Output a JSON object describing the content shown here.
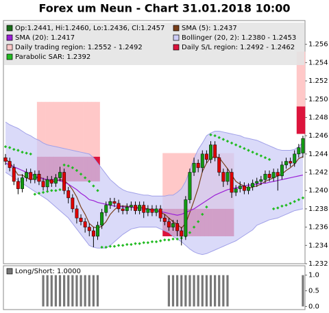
{
  "chart_data": {
    "type": "candlestick",
    "title": "Forex um Neun - Chart 31.01.2018 10:00",
    "ylim": [
      1.232,
      1.2586
    ],
    "yticks": [
      1.232,
      1.234,
      1.236,
      1.238,
      {
        "value": 1.24,
        "label": "1.240"
      },
      1.242,
      1.244,
      1.246,
      1.248,
      {
        "value": 1.25,
        "label": "1.250"
      },
      1.252,
      1.254,
      1.256
    ],
    "candles": {
      "name": "Op:1.2441, Hi:1.2460, Lo:1.2436, Cl:1.2457",
      "color": "#1a6e1a",
      "up_color": "#129a12",
      "down_color": "#dd0000",
      "open": [
        1.2436,
        1.2432,
        1.2425,
        1.241,
        1.2402,
        1.2414,
        1.242,
        1.2412,
        1.2418,
        1.241,
        1.2404,
        1.2412,
        1.2408,
        1.2414,
        1.242,
        1.24,
        1.2392,
        1.238,
        1.237,
        1.2366,
        1.236,
        1.2356,
        1.235,
        1.2362,
        1.2376,
        1.2384,
        1.2388,
        1.2386,
        1.238,
        1.2378,
        1.2382,
        1.2384,
        1.2378,
        1.2384,
        1.2376,
        1.238,
        1.2376,
        1.238,
        1.237,
        1.2366,
        1.236,
        1.2364,
        1.2356,
        1.235,
        1.239,
        1.242,
        1.243,
        1.2425,
        1.244,
        1.2434,
        1.245,
        1.2436,
        1.242,
        1.241,
        1.242,
        1.2398,
        1.2402,
        1.2405,
        1.24,
        1.2404,
        1.2408,
        1.241,
        1.2412,
        1.2418,
        1.2414,
        1.242,
        1.2416,
        1.2428,
        1.2432,
        1.243,
        1.244,
        1.2441
      ],
      "high": [
        1.244,
        1.2436,
        1.2429,
        1.2414,
        1.2418,
        1.2424,
        1.2424,
        1.2422,
        1.2422,
        1.2414,
        1.2416,
        1.2416,
        1.2418,
        1.2426,
        1.2424,
        1.2404,
        1.2396,
        1.2384,
        1.2374,
        1.237,
        1.2364,
        1.236,
        1.2366,
        1.238,
        1.2388,
        1.2392,
        1.2392,
        1.239,
        1.2384,
        1.2386,
        1.2388,
        1.2388,
        1.2388,
        1.2388,
        1.2384,
        1.2384,
        1.2384,
        1.2384,
        1.2374,
        1.237,
        1.2368,
        1.2368,
        1.236,
        1.2394,
        1.2424,
        1.2436,
        1.2434,
        1.2444,
        1.2444,
        1.2454,
        1.2454,
        1.244,
        1.2424,
        1.2424,
        1.2424,
        1.2406,
        1.241,
        1.2409,
        1.2408,
        1.2412,
        1.2414,
        1.2416,
        1.2422,
        1.2422,
        1.2424,
        1.2424,
        1.2432,
        1.2436,
        1.2436,
        1.2444,
        1.2451,
        1.246
      ],
      "low": [
        1.2428,
        1.2421,
        1.2406,
        1.2396,
        1.2398,
        1.241,
        1.2408,
        1.2408,
        1.2406,
        1.24,
        1.24,
        1.2404,
        1.2404,
        1.241,
        1.2396,
        1.2386,
        1.2376,
        1.2364,
        1.2362,
        1.2354,
        1.235,
        1.2338,
        1.2346,
        1.2358,
        1.2372,
        1.238,
        1.2382,
        1.2376,
        1.2374,
        1.2374,
        1.2378,
        1.2374,
        1.2374,
        1.237,
        1.2372,
        1.2372,
        1.2372,
        1.2366,
        1.2362,
        1.2356,
        1.2356,
        1.235,
        1.234,
        1.2346,
        1.2386,
        1.2416,
        1.242,
        1.242,
        1.243,
        1.243,
        1.2432,
        1.2416,
        1.2404,
        1.2406,
        1.2392,
        1.2394,
        1.2398,
        1.2396,
        1.2396,
        1.24,
        1.2404,
        1.2406,
        1.2408,
        1.241,
        1.241,
        1.24,
        1.2412,
        1.2424,
        1.2426,
        1.2426,
        1.2436,
        1.2436
      ],
      "close": [
        1.2432,
        1.2425,
        1.241,
        1.2402,
        1.2414,
        1.242,
        1.2412,
        1.2418,
        1.241,
        1.2404,
        1.2412,
        1.2408,
        1.2414,
        1.242,
        1.24,
        1.2392,
        1.238,
        1.237,
        1.2366,
        1.236,
        1.2356,
        1.235,
        1.2362,
        1.2376,
        1.2384,
        1.2388,
        1.2386,
        1.238,
        1.2378,
        1.2382,
        1.2384,
        1.2378,
        1.2384,
        1.2376,
        1.238,
        1.2376,
        1.238,
        1.237,
        1.2366,
        1.236,
        1.2364,
        1.2356,
        1.235,
        1.239,
        1.242,
        1.243,
        1.2425,
        1.244,
        1.2434,
        1.245,
        1.2436,
        1.242,
        1.241,
        1.242,
        1.2398,
        1.2402,
        1.2405,
        1.24,
        1.2404,
        1.2408,
        1.241,
        1.2412,
        1.2418,
        1.2414,
        1.242,
        1.2416,
        1.2428,
        1.2432,
        1.243,
        1.244,
        1.2447,
        1.2457
      ]
    },
    "series": [
      {
        "name": "SMA (5): 1.2437",
        "color": "#7a3f1a",
        "values": [
          1.2434,
          1.2431,
          1.2424,
          1.2417,
          1.2417,
          1.2414,
          1.2412,
          1.2413,
          1.2415,
          1.2413,
          1.2411,
          1.241,
          1.241,
          1.2412,
          1.2411,
          1.2407,
          1.2401,
          1.2393,
          1.2382,
          1.2374,
          1.2364,
          1.236,
          1.2359,
          1.2361,
          1.2366,
          1.2374,
          1.2379,
          1.2383,
          1.2383,
          1.2383,
          1.2382,
          1.2381,
          1.2382,
          1.2381,
          1.238,
          1.2379,
          1.2379,
          1.2376,
          1.2374,
          1.237,
          1.2366,
          1.2363,
          1.2359,
          1.2364,
          1.2376,
          1.2389,
          1.2403,
          1.2421,
          1.243,
          1.2436,
          1.2437,
          1.2436,
          1.243,
          1.2424,
          1.2417,
          1.241,
          1.2407,
          1.2405,
          1.2402,
          1.2404,
          1.2405,
          1.2407,
          1.241,
          1.2412,
          1.2414,
          1.2416,
          1.2418,
          1.2422,
          1.2425,
          1.2429,
          1.2435,
          1.2437
        ]
      },
      {
        "name": "SMA (20): 1.2417",
        "color": "#9b1fd6",
        "values": [
          1.243,
          1.2428,
          1.2426,
          1.2424,
          1.2422,
          1.242,
          1.2418,
          1.2416,
          1.2414,
          1.2413,
          1.2412,
          1.2412,
          1.2412,
          1.2411,
          1.2409,
          1.2407,
          1.2404,
          1.2401,
          1.2397,
          1.2394,
          1.239,
          1.2389,
          1.2387,
          1.2386,
          1.2385,
          1.2384,
          1.2383,
          1.2383,
          1.2382,
          1.2382,
          1.2382,
          1.2381,
          1.238,
          1.238,
          1.2379,
          1.2379,
          1.2378,
          1.2377,
          1.2376,
          1.2375,
          1.2374,
          1.2373,
          1.2374,
          1.2376,
          1.2378,
          1.238,
          1.2383,
          1.2386,
          1.2389,
          1.2392,
          1.2395,
          1.2397,
          1.2399,
          1.2401,
          1.2402,
          1.2403,
          1.2404,
          1.2405,
          1.2406,
          1.2406,
          1.2407,
          1.2408,
          1.2408,
          1.2409,
          1.241,
          1.2411,
          1.2412,
          1.2413,
          1.2414,
          1.2415,
          1.2416,
          1.2417
        ]
      }
    ],
    "bollinger": {
      "name": "Bollinger (20, 2): 1.2380 - 1.2453",
      "color": "#cdcdf7",
      "line_color": "#a0a0e8",
      "upper": [
        1.2475,
        1.2472,
        1.247,
        1.2468,
        1.2465,
        1.2462,
        1.246,
        1.2457,
        1.2455,
        1.2452,
        1.245,
        1.2449,
        1.2448,
        1.2447,
        1.2446,
        1.2445,
        1.2444,
        1.2443,
        1.2442,
        1.2441,
        1.244,
        1.2436,
        1.243,
        1.2424,
        1.2418,
        1.2412,
        1.2408,
        1.2404,
        1.2401,
        1.2399,
        1.2398,
        1.2397,
        1.2396,
        1.2395,
        1.2395,
        1.2394,
        1.2394,
        1.2394,
        1.2394,
        1.2395,
        1.2395,
        1.2398,
        1.2402,
        1.241,
        1.2422,
        1.2435,
        1.2445,
        1.2452,
        1.246,
        1.2463,
        1.2465,
        1.2465,
        1.2464,
        1.2463,
        1.2462,
        1.2461,
        1.246,
        1.2458,
        1.2457,
        1.2456,
        1.2455,
        1.2453,
        1.2451,
        1.2449,
        1.2447,
        1.2445,
        1.2444,
        1.2444,
        1.2444,
        1.2445,
        1.2448,
        1.2453
      ],
      "lower": [
        1.242,
        1.2417,
        1.2414,
        1.2411,
        1.2408,
        1.2405,
        1.2402,
        1.2399,
        1.2396,
        1.2393,
        1.239,
        1.2386,
        1.2382,
        1.2378,
        1.2374,
        1.237,
        1.2364,
        1.2358,
        1.2352,
        1.2346,
        1.234,
        1.2338,
        1.2337,
        1.2337,
        1.2337,
        1.234,
        1.2344,
        1.2348,
        1.2352,
        1.2355,
        1.2358,
        1.2359,
        1.236,
        1.236,
        1.236,
        1.236,
        1.236,
        1.2358,
        1.2356,
        1.2354,
        1.235,
        1.2347,
        1.2344,
        1.234,
        1.2336,
        1.2333,
        1.2331,
        1.233,
        1.2331,
        1.2333,
        1.2335,
        1.2337,
        1.2339,
        1.2341,
        1.2343,
        1.2345,
        1.2348,
        1.2351,
        1.2354,
        1.2357,
        1.2362,
        1.2364,
        1.2366,
        1.2368,
        1.2369,
        1.237,
        1.2372,
        1.2374,
        1.2376,
        1.2378,
        1.2379,
        1.238
      ]
    },
    "regions": [
      {
        "name": "Daily trading region: 1.2552 - 1.2492",
        "color": "#ffc8c8",
        "high": [
          null,
          null,
          null,
          null,
          null,
          null,
          null,
          null,
          1.2497,
          1.2497,
          1.2497,
          1.2497,
          1.2497,
          1.2497,
          1.2497,
          1.2497,
          1.2497,
          1.2497,
          1.2497,
          1.2497,
          1.2497,
          1.2497,
          1.2497,
          null,
          null,
          null,
          null,
          null,
          null,
          null,
          null,
          null,
          null,
          null,
          null,
          null,
          null,
          null,
          1.2441,
          1.2441,
          1.2441,
          1.2441,
          1.2441,
          1.2441,
          1.2441,
          1.2441,
          1.2441,
          1.2441,
          1.2441,
          1.2441,
          1.2441,
          1.2441,
          1.2441,
          1.2441,
          1.2441,
          null,
          null,
          null,
          null,
          null,
          null,
          null,
          null,
          null,
          null,
          null,
          null,
          null,
          null,
          null,
          1.2552,
          1.2552
        ],
        "low": [
          null,
          null,
          null,
          null,
          null,
          null,
          null,
          null,
          1.2437,
          1.2437,
          1.2437,
          1.2437,
          1.2437,
          1.2437,
          1.2437,
          1.2437,
          1.2437,
          1.2437,
          1.2437,
          1.2437,
          1.2437,
          1.2437,
          1.2437,
          null,
          null,
          null,
          null,
          null,
          null,
          null,
          null,
          null,
          null,
          null,
          null,
          null,
          null,
          null,
          1.238,
          1.238,
          1.238,
          1.238,
          1.238,
          1.238,
          1.238,
          1.238,
          1.238,
          1.238,
          1.238,
          1.238,
          1.238,
          1.238,
          1.238,
          1.238,
          1.238,
          null,
          null,
          null,
          null,
          null,
          null,
          null,
          null,
          null,
          null,
          null,
          null,
          null,
          null,
          null,
          1.2492,
          1.2492
        ]
      },
      {
        "name": "Daily S/L region: 1.2492 - 1.2462",
        "color": "#dc143c",
        "high": [
          null,
          null,
          null,
          null,
          null,
          null,
          null,
          null,
          1.2437,
          1.2437,
          1.2437,
          1.2437,
          1.2437,
          1.2437,
          1.2437,
          1.2437,
          1.2437,
          1.2437,
          1.2437,
          1.2437,
          1.2437,
          1.2437,
          1.2437,
          null,
          null,
          null,
          null,
          null,
          null,
          null,
          null,
          null,
          null,
          null,
          null,
          null,
          null,
          null,
          1.238,
          1.238,
          1.238,
          1.238,
          1.238,
          1.238,
          1.238,
          1.238,
          1.238,
          1.238,
          1.238,
          1.238,
          1.238,
          1.238,
          1.238,
          1.238,
          1.238,
          null,
          null,
          null,
          null,
          null,
          null,
          null,
          null,
          null,
          null,
          null,
          null,
          null,
          null,
          null,
          1.2492,
          1.2492
        ],
        "low": [
          null,
          null,
          null,
          null,
          null,
          null,
          null,
          null,
          1.241,
          1.241,
          1.241,
          1.241,
          1.241,
          1.241,
          1.241,
          1.241,
          1.241,
          1.241,
          1.241,
          1.241,
          1.241,
          1.241,
          1.241,
          null,
          null,
          null,
          null,
          null,
          null,
          null,
          null,
          null,
          null,
          null,
          null,
          null,
          null,
          null,
          1.235,
          1.235,
          1.235,
          1.235,
          1.235,
          1.235,
          1.235,
          1.235,
          1.235,
          1.235,
          1.235,
          1.235,
          1.235,
          1.235,
          1.235,
          1.235,
          1.235,
          null,
          null,
          null,
          null,
          null,
          null,
          null,
          null,
          null,
          null,
          null,
          null,
          null,
          null,
          null,
          1.2462,
          1.2462
        ]
      }
    ],
    "sar": {
      "name": "Parabolic SAR: 1.2392",
      "color": "#22bb22",
      "values": [
        1.2448,
        1.2447,
        1.2445,
        1.2444,
        1.2442,
        1.2441,
        1.244,
        1.2396,
        1.2397,
        1.2398,
        1.2399,
        1.24,
        1.24,
        1.2401,
        1.2428,
        1.2427,
        1.2425,
        1.2422,
        1.2418,
        1.2414,
        1.241,
        1.2405,
        1.24,
        1.2338,
        1.2338,
        1.2339,
        1.2339,
        1.234,
        1.234,
        1.2341,
        1.2341,
        1.2342,
        1.2342,
        1.2343,
        1.2343,
        1.2344,
        1.2344,
        1.2345,
        1.2346,
        1.2346,
        1.2347,
        1.2347,
        1.2348,
        1.235,
        1.2354,
        1.236,
        1.2366,
        1.2374,
        1.2382,
        1.2461,
        1.246,
        1.2458,
        1.2456,
        1.2454,
        1.2452,
        1.245,
        1.2448,
        1.2446,
        1.2444,
        1.2442,
        1.244,
        1.2438,
        1.2436,
        1.2434,
        1.238,
        1.2381,
        1.2383,
        1.2384,
        1.2386,
        1.2388,
        1.239,
        1.2392
      ]
    },
    "indicator": {
      "name": "Long/Short: 1.0000",
      "color": "#777777",
      "ylim": [
        -0.1,
        1.3
      ],
      "yticks": [
        {
          "value": 0,
          "label": "0.0"
        },
        0.5,
        {
          "value": 1,
          "label": "1.0"
        }
      ],
      "values": [
        0,
        0,
        0,
        0,
        0,
        0,
        0,
        0,
        0,
        1,
        1,
        1,
        1,
        1,
        1,
        1,
        1,
        1,
        1,
        1,
        1,
        1,
        1,
        0,
        0,
        0,
        0,
        0,
        0,
        0,
        0,
        0,
        0,
        0,
        0,
        0,
        0,
        0,
        0,
        1,
        1,
        1,
        1,
        1,
        1,
        1,
        1,
        1,
        1,
        1,
        1,
        1,
        1,
        1,
        0,
        0,
        0,
        0,
        0,
        0,
        0,
        0,
        0,
        0,
        0,
        0,
        0,
        0,
        0,
        0,
        0,
        1
      ]
    }
  }
}
